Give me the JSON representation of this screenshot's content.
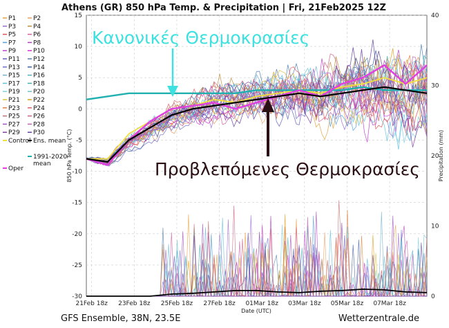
{
  "title": "Athens  (GR)  850 hPa Temp. & Precipitation | Fri, 21Feb2025 12Z",
  "footer_left": "GFS Ensemble, 38N, 23.5E",
  "footer_right": "Wetterzentrale.de",
  "annotations": {
    "normal": "Κανονικές Θερμοκρασίες",
    "forecast": "Προβλεπόμενες Θερμοκρασίες"
  },
  "colors": {
    "ens_mean": "#000000",
    "oper": "#e040e0",
    "control": "#f0e040",
    "climate_mean": "#20b0b0",
    "annotation_normal": "#3ee0e0",
    "annotation_forecast": "#2a0f14"
  },
  "legend": {
    "members": [
      "P1",
      "P2",
      "P3",
      "P4",
      "P5",
      "P6",
      "P7",
      "P8",
      "P9",
      "P10",
      "P11",
      "P12",
      "P13",
      "P14",
      "P15",
      "P16",
      "P17",
      "P18",
      "P19",
      "P20",
      "P21",
      "P22",
      "P23",
      "P24",
      "P25",
      "P26",
      "P27",
      "P28",
      "P29",
      "P30"
    ],
    "member_colors": [
      "#e8a040",
      "#e8a060",
      "#9a6cd0",
      "#c09040",
      "#e05050",
      "#d060a0",
      "#50a0e0",
      "#b040c0",
      "#c040d0",
      "#d030d0",
      "#6060c0",
      "#5080b0",
      "#7070d0",
      "#4060a0",
      "#70b0d0",
      "#50b0c0",
      "#60c0e0",
      "#40b0b0",
      "#80d0e0",
      "#70c0d0",
      "#e0c040",
      "#e0a020",
      "#e08040",
      "#e06060",
      "#c07070",
      "#d06080",
      "#a050c0",
      "#c060b0",
      "#8040a0",
      "#6040a0"
    ],
    "control": "Control",
    "ens_mean": "Ens. mean",
    "climate": "1991-2020\nmean",
    "oper": "Oper"
  },
  "chart_data": {
    "type": "line",
    "x_ticks": [
      "21Feb 18z",
      "23Feb 18z",
      "25Feb 18z",
      "27Feb 18z",
      "01Mar 18z",
      "03Mar 18z",
      "05Mar 18z",
      "07Mar 18z"
    ],
    "xlabel": "Date (UTC)",
    "ylabel_left": "850 hPa Temp. (°C)",
    "ylabel_right": "Precipitation (mm)",
    "ylim_left": [
      -30,
      15
    ],
    "ylim_right": [
      0,
      40
    ],
    "y_ticks_left": [
      -30,
      -25,
      -20,
      -15,
      -10,
      -5,
      0,
      5,
      10,
      15
    ],
    "y_ticks_right": [
      0,
      10,
      20,
      30,
      40
    ],
    "grid": true,
    "x_days": [
      0,
      1,
      2,
      3,
      4,
      5,
      6,
      7,
      8,
      9,
      10,
      11,
      12,
      13,
      14,
      15,
      16
    ],
    "series": [
      {
        "name": "Ens. mean",
        "values": [
          -8,
          -8.5,
          -5,
          -3,
          -1,
          0,
          0.5,
          1,
          1.5,
          2,
          2.5,
          2,
          2.5,
          3,
          3.5,
          3,
          2.5
        ]
      },
      {
        "name": "1991-2020 mean",
        "values": [
          1.5,
          2,
          2.5,
          2.5,
          2.5,
          2.5,
          2.5,
          2.5,
          3,
          3,
          3,
          3,
          3,
          3.5,
          3,
          3,
          3
        ]
      },
      {
        "name": "Oper",
        "values": [
          -8,
          -9,
          -5,
          -2,
          0,
          0.5,
          1,
          0,
          1,
          2,
          3,
          2,
          4,
          5,
          7,
          4,
          7
        ]
      },
      {
        "name": "Control",
        "values": [
          -8,
          -8,
          -4,
          -2,
          0,
          0.5,
          1.5,
          1,
          2,
          2.5,
          3,
          2.5,
          3.5,
          4,
          5,
          4,
          5
        ]
      },
      {
        "name": "Ens. mean precipitation",
        "values": [
          0,
          0,
          0,
          0,
          0.3,
          0.4,
          0.6,
          0.8,
          0.8,
          0.6,
          0.5,
          0.7,
          0.8,
          1,
          0.9,
          0.6,
          0.5
        ]
      }
    ]
  }
}
